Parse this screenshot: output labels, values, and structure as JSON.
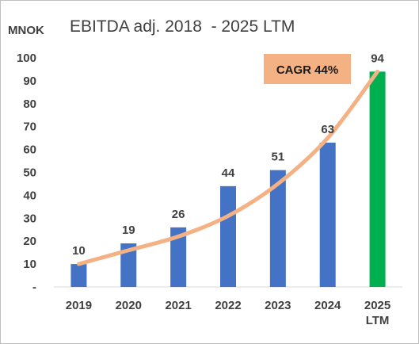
{
  "chart_data": {
    "type": "bar",
    "title": "EBITDA adj. 2018  - 2025 LTM",
    "unit_label": "MNOK",
    "categories": [
      "2019",
      "2020",
      "2021",
      "2022",
      "2023",
      "2024",
      [
        "2025",
        "LTM"
      ]
    ],
    "values": [
      10,
      19,
      26,
      44,
      51,
      63,
      94
    ],
    "bar_colors": [
      "#4472c4",
      "#4472c4",
      "#4472c4",
      "#4472c4",
      "#4472c4",
      "#4472c4",
      "#00b050"
    ],
    "trend_line": {
      "color": "#f4b183",
      "values": [
        10,
        16,
        22,
        31,
        45,
        65,
        94
      ]
    },
    "annotation": {
      "text": "CAGR 44%",
      "fill": "#f4b183"
    },
    "ylim": [
      0,
      100
    ],
    "yticks": [
      "-",
      "10",
      "20",
      "30",
      "40",
      "50",
      "60",
      "70",
      "80",
      "90",
      "100"
    ],
    "grid": false
  }
}
